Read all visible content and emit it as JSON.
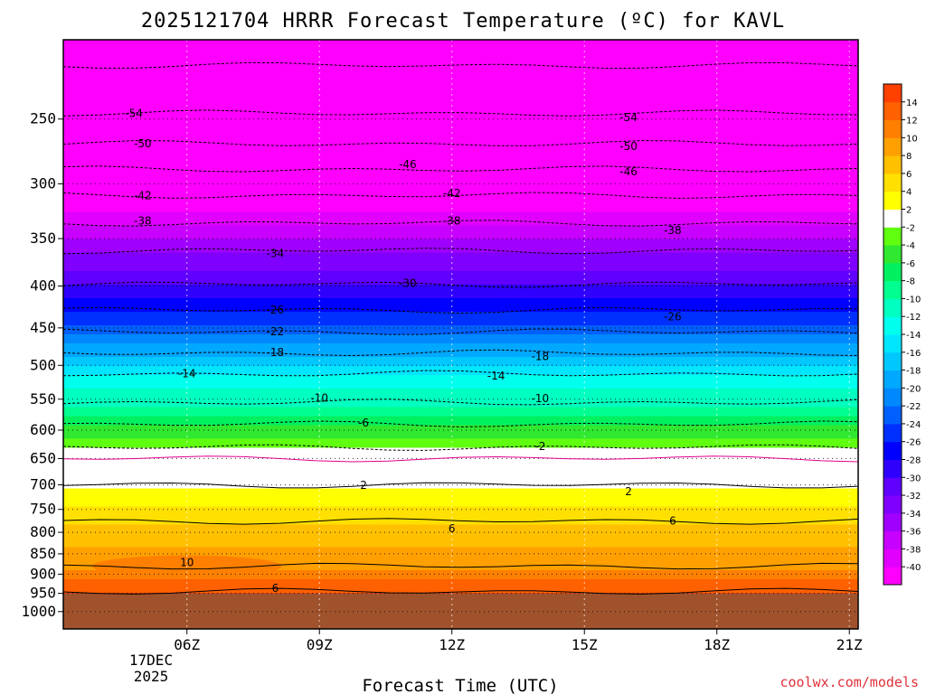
{
  "chart_data": {
    "type": "heatmap",
    "title": "2025121704 HRRR Forecast Temperature (ºC) for KAVL",
    "xlabel": "Forecast Time (UTC)",
    "ylabel": "",
    "credit": "coolwx.com/models",
    "x_ticks": [
      {
        "hour": 6,
        "label": "06Z"
      },
      {
        "hour": 9,
        "label": "09Z"
      },
      {
        "hour": 12,
        "label": "12Z"
      },
      {
        "hour": 15,
        "label": "15Z"
      },
      {
        "hour": 18,
        "label": "18Z"
      },
      {
        "hour": 21,
        "label": "21Z"
      }
    ],
    "date_label": [
      "17DEC",
      "2025"
    ],
    "xlim": [
      3.2,
      21.2
    ],
    "y_ticks": [
      250,
      300,
      350,
      400,
      450,
      500,
      550,
      600,
      650,
      700,
      750,
      800,
      850,
      900,
      950,
      1000
    ],
    "ylim": [
      200,
      1050
    ],
    "y_scale": "log",
    "surface_pressure_mb": 950,
    "surface_color": "#a0522d",
    "grid": true,
    "colorbar": {
      "position": "right",
      "levels": [
        -40,
        -38,
        -36,
        -34,
        -32,
        -30,
        -28,
        -26,
        -24,
        -22,
        -20,
        -18,
        -16,
        -14,
        -12,
        -10,
        -8,
        -6,
        -4,
        -2,
        2,
        4,
        6,
        8,
        10,
        12,
        14
      ],
      "colors": [
        "#ff00ff",
        "#e100ff",
        "#c800ff",
        "#a000ff",
        "#8000ff",
        "#6000ff",
        "#3000ff",
        "#0000ff",
        "#0030ff",
        "#0060ff",
        "#0088ff",
        "#00a8ff",
        "#00c8ff",
        "#00e6ff",
        "#00ffee",
        "#00ffc0",
        "#00ff90",
        "#00f060",
        "#30e830",
        "#60ff10",
        "#ffffff",
        "#ffff00",
        "#ffe000",
        "#ffc000",
        "#ffa000",
        "#ff8000",
        "#ff6000",
        "#ff4000"
      ]
    },
    "isotherm_profile": [
      {
        "t": -56,
        "p": 215
      },
      {
        "t": -54,
        "p": 246
      },
      {
        "t": -50,
        "p": 268
      },
      {
        "t": -46,
        "p": 288
      },
      {
        "t": -42,
        "p": 310
      },
      {
        "t": -38,
        "p": 335
      },
      {
        "t": -34,
        "p": 362
      },
      {
        "t": -30,
        "p": 398
      },
      {
        "t": -26,
        "p": 428
      },
      {
        "t": -22,
        "p": 455
      },
      {
        "t": -18,
        "p": 483
      },
      {
        "t": -14,
        "p": 512
      },
      {
        "t": -10,
        "p": 555
      },
      {
        "t": -6,
        "p": 590
      },
      {
        "t": -2,
        "p": 630
      },
      {
        "t": 0,
        "p": 650
      },
      {
        "t": 2,
        "p": 700
      },
      {
        "t": 6,
        "p": 775
      },
      {
        "t": 10,
        "p": 880
      },
      {
        "t": 14,
        "p": 945
      }
    ],
    "contour_labels": [
      {
        "value": "-54",
        "hour": 4.8,
        "p": 246
      },
      {
        "value": "-54",
        "hour": 16.0,
        "p": 249
      },
      {
        "value": "-50",
        "hour": 5.0,
        "p": 268
      },
      {
        "value": "-50",
        "hour": 16.0,
        "p": 270
      },
      {
        "value": "-46",
        "hour": 11.0,
        "p": 284
      },
      {
        "value": "-46",
        "hour": 16.0,
        "p": 290
      },
      {
        "value": "-42",
        "hour": 5.0,
        "p": 310
      },
      {
        "value": "-42",
        "hour": 12.0,
        "p": 308
      },
      {
        "value": "-38",
        "hour": 5.0,
        "p": 333
      },
      {
        "value": "-38",
        "hour": 12.0,
        "p": 333
      },
      {
        "value": "-38",
        "hour": 17.0,
        "p": 342
      },
      {
        "value": "-34",
        "hour": 8.0,
        "p": 365
      },
      {
        "value": "-30",
        "hour": 11.0,
        "p": 397
      },
      {
        "value": "-26",
        "hour": 8.0,
        "p": 428
      },
      {
        "value": "-26",
        "hour": 17.0,
        "p": 436
      },
      {
        "value": "-22",
        "hour": 8.0,
        "p": 455
      },
      {
        "value": "-18",
        "hour": 8.0,
        "p": 482
      },
      {
        "value": "-18",
        "hour": 14.0,
        "p": 488
      },
      {
        "value": "-14",
        "hour": 6.0,
        "p": 512
      },
      {
        "value": "-14",
        "hour": 13.0,
        "p": 515
      },
      {
        "value": "-10",
        "hour": 9.0,
        "p": 548
      },
      {
        "value": "-10",
        "hour": 14.0,
        "p": 549
      },
      {
        "value": "-6",
        "hour": 10.0,
        "p": 588
      },
      {
        "value": "-2",
        "hour": 14.0,
        "p": 628
      },
      {
        "value": "2",
        "hour": 10.0,
        "p": 701
      },
      {
        "value": "2",
        "hour": 16.0,
        "p": 713
      },
      {
        "value": "6",
        "hour": 12.0,
        "p": 792
      },
      {
        "value": "6",
        "hour": 17.0,
        "p": 775
      },
      {
        "value": "10",
        "hour": 6.0,
        "p": 871
      },
      {
        "value": "6",
        "hour": 8.0,
        "p": 937
      }
    ]
  }
}
